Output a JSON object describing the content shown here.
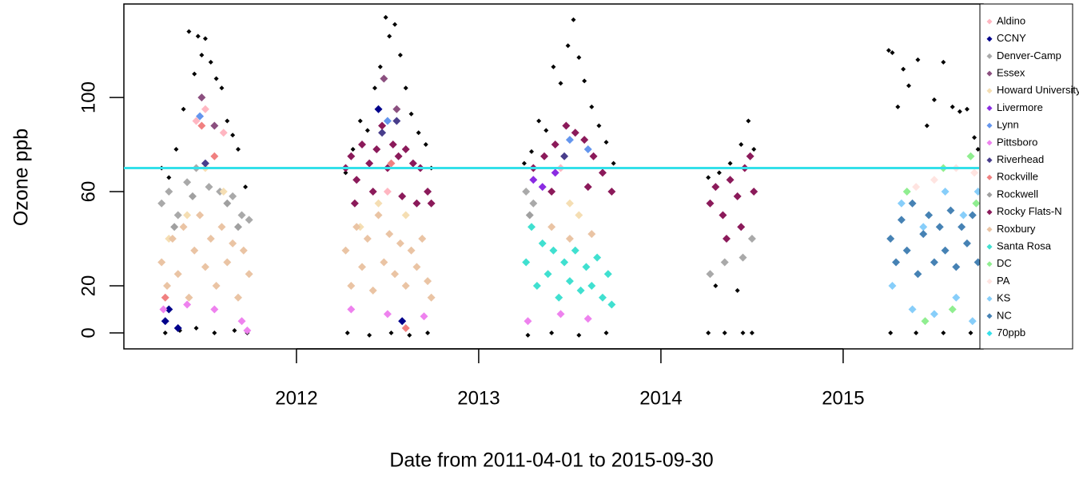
{
  "chart_data": {
    "type": "scatter",
    "x_label": "Date from 2011-04-01 to 2015-09-30",
    "y_label": "Ozone ppb",
    "xlim": [
      2011.053,
      2015.746
    ],
    "xticks": [
      2012,
      2013,
      2014,
      2015
    ],
    "ylim": [
      -6.8,
      139.7
    ],
    "yticks": [
      0,
      20,
      60,
      100
    ],
    "series": [
      {
        "color": "#000000",
        "x": [
          2011.26,
          2011.3,
          2011.34,
          2011.38,
          2011.41,
          2011.44,
          2011.46,
          2011.48,
          2011.5,
          2011.53,
          2011.56,
          2011.59,
          2011.62,
          2011.65,
          2011.68,
          2011.72,
          2011.28,
          2011.36,
          2011.45,
          2011.55,
          2011.66,
          2011.73,
          2012.27,
          2012.31,
          2012.35,
          2012.39,
          2012.43,
          2012.46,
          2012.49,
          2012.51,
          2012.54,
          2012.57,
          2012.6,
          2012.63,
          2012.67,
          2012.71,
          2012.74,
          2012.28,
          2012.4,
          2012.52,
          2012.62,
          2012.72,
          2013.25,
          2013.29,
          2013.33,
          2013.37,
          2013.41,
          2013.45,
          2013.49,
          2013.52,
          2013.55,
          2013.58,
          2013.62,
          2013.66,
          2013.7,
          2013.74,
          2013.27,
          2013.4,
          2013.55,
          2013.7,
          2014.26,
          2014.32,
          2014.38,
          2014.44,
          2014.48,
          2014.51,
          2014.26,
          2014.35,
          2014.45,
          2014.5,
          2014.3,
          2014.42,
          2015.25,
          2015.27,
          2015.3,
          2015.33,
          2015.36,
          2015.41,
          2015.46,
          2015.5,
          2015.55,
          2015.6,
          2015.64,
          2015.68,
          2015.72,
          2015.74,
          2015.26,
          2015.4,
          2015.55,
          2015.7
        ],
        "values": [
          70,
          66,
          78,
          95,
          128,
          110,
          126,
          118,
          125,
          115,
          108,
          104,
          90,
          84,
          78,
          62,
          0,
          1,
          2,
          0,
          1,
          0,
          68,
          78,
          90,
          86,
          104,
          113,
          134,
          126,
          131,
          118,
          104,
          93,
          85,
          80,
          70,
          0,
          -1,
          0,
          -1,
          0,
          72,
          77,
          90,
          86,
          113,
          106,
          122,
          133,
          117,
          107,
          96,
          88,
          81,
          72,
          -1,
          0,
          -1,
          0,
          66,
          68,
          72,
          80,
          90,
          78,
          0,
          0,
          0,
          0,
          20,
          18,
          120,
          119,
          96,
          112,
          105,
          116,
          88,
          99,
          115,
          96,
          94,
          95,
          83,
          78,
          0,
          0,
          0,
          0
        ]
      },
      {
        "name": "Aldino",
        "color": "#ffb6c1",
        "x": [
          2011.45,
          2011.5,
          2012.5,
          2011.6,
          2013.45
        ],
        "values": [
          90,
          95,
          60,
          85,
          70
        ]
      },
      {
        "name": "CCNY",
        "color": "#00008b",
        "x": [
          2011.28,
          2011.3,
          2012.45,
          2011.35,
          2012.58
        ],
        "values": [
          5,
          10,
          95,
          2,
          5
        ]
      },
      {
        "name": "Denver-Camp",
        "color": "#a9a9a9",
        "x": [
          2011.26,
          2011.3,
          2011.35,
          2011.4,
          2011.45,
          2011.52,
          2011.58,
          2011.65,
          2011.7,
          2011.74,
          2014.27,
          2014.35,
          2014.45,
          2014.5,
          2013.26,
          2013.3
        ],
        "values": [
          55,
          60,
          50,
          64,
          70,
          62,
          60,
          58,
          50,
          48,
          25,
          30,
          32,
          40,
          60,
          55
        ]
      },
      {
        "name": "Essex",
        "color": "#8b4f7f",
        "x": [
          2011.48,
          2012.48,
          2012.55,
          2011.55
        ],
        "values": [
          100,
          108,
          95,
          88
        ]
      },
      {
        "name": "Howard University",
        "color": "#f5deb3",
        "x": [
          2011.3,
          2011.4,
          2011.5,
          2011.6,
          2012.35,
          2012.45,
          2012.6,
          2013.5,
          2013.55
        ],
        "values": [
          40,
          50,
          70,
          60,
          45,
          55,
          50,
          55,
          50
        ]
      },
      {
        "name": "Livermore",
        "color": "#8a2be2",
        "x": [
          2013.3,
          2013.35,
          2013.42
        ],
        "values": [
          65,
          62,
          68
        ]
      },
      {
        "name": "Lynn",
        "color": "#6495ed",
        "x": [
          2011.47,
          2012.5,
          2013.6,
          2013.5
        ],
        "values": [
          92,
          90,
          78,
          82
        ]
      },
      {
        "name": "Pittsboro",
        "color": "#ee82ee",
        "x": [
          2011.27,
          2011.4,
          2011.55,
          2011.7,
          2012.3,
          2012.5,
          2012.7,
          2013.27,
          2013.45,
          2013.6,
          2011.73
        ],
        "values": [
          10,
          12,
          10,
          5,
          10,
          8,
          7,
          5,
          8,
          6,
          1
        ]
      },
      {
        "name": "Riverhead",
        "color": "#483d8b",
        "x": [
          2012.47,
          2012.55,
          2013.47,
          2011.5
        ],
        "values": [
          85,
          90,
          75,
          72
        ]
      },
      {
        "name": "Rockville",
        "color": "#f08080",
        "x": [
          2011.55,
          2011.48,
          2012.52,
          2011.28,
          2012.6
        ],
        "values": [
          75,
          88,
          72,
          15,
          2
        ]
      },
      {
        "name": "Rockwell",
        "color": "#a0a0a0",
        "x": [
          2011.33,
          2011.43,
          2011.62,
          2011.68,
          2013.28
        ],
        "values": [
          45,
          58,
          55,
          45,
          50
        ]
      },
      {
        "name": "Rocky Flats-N",
        "color": "#8b1a5a",
        "x": [
          2012.27,
          2012.3,
          2012.33,
          2012.36,
          2012.4,
          2012.44,
          2012.47,
          2012.5,
          2012.53,
          2012.56,
          2012.6,
          2012.64,
          2012.68,
          2012.72,
          2012.74,
          2012.32,
          2012.42,
          2012.58,
          2012.66,
          2013.3,
          2013.36,
          2013.42,
          2013.48,
          2013.53,
          2013.58,
          2013.63,
          2013.68,
          2013.73,
          2013.4,
          2013.6,
          2014.27,
          2014.3,
          2014.34,
          2014.38,
          2014.42,
          2014.46,
          2014.49,
          2014.51,
          2014.36,
          2014.44
        ],
        "values": [
          70,
          75,
          65,
          80,
          72,
          78,
          88,
          70,
          80,
          75,
          78,
          72,
          70,
          60,
          55,
          55,
          60,
          58,
          55,
          70,
          75,
          80,
          88,
          85,
          82,
          75,
          68,
          60,
          60,
          62,
          55,
          62,
          50,
          65,
          58,
          70,
          75,
          60,
          40,
          45
        ]
      },
      {
        "name": "Roxbury",
        "color": "#eac4a4",
        "x": [
          2011.26,
          2011.29,
          2011.32,
          2011.35,
          2011.38,
          2011.41,
          2011.44,
          2011.47,
          2011.5,
          2011.53,
          2011.56,
          2011.59,
          2011.62,
          2011.65,
          2011.68,
          2011.71,
          2011.74,
          2012.27,
          2012.3,
          2012.33,
          2012.36,
          2012.39,
          2012.42,
          2012.45,
          2012.48,
          2012.51,
          2012.54,
          2012.57,
          2012.6,
          2012.63,
          2012.66,
          2012.69,
          2012.72,
          2012.74,
          2013.4,
          2013.5,
          2013.62
        ],
        "values": [
          30,
          20,
          40,
          25,
          45,
          15,
          35,
          50,
          28,
          40,
          20,
          45,
          30,
          38,
          15,
          35,
          25,
          35,
          20,
          45,
          28,
          40,
          18,
          50,
          30,
          42,
          25,
          38,
          20,
          35,
          28,
          40,
          22,
          15,
          45,
          40,
          42
        ]
      },
      {
        "name": "Santa Rosa",
        "color": "#40e0d0",
        "x": [
          2013.26,
          2013.29,
          2013.32,
          2013.35,
          2013.38,
          2013.41,
          2013.44,
          2013.47,
          2013.5,
          2013.53,
          2013.56,
          2013.59,
          2013.62,
          2013.65,
          2013.68,
          2013.71,
          2013.73
        ],
        "values": [
          30,
          45,
          20,
          38,
          25,
          35,
          15,
          30,
          22,
          35,
          18,
          28,
          20,
          32,
          15,
          25,
          12
        ]
      },
      {
        "name": "DC",
        "color": "#90ee90",
        "x": [
          2015.35,
          2015.45,
          2015.55,
          2015.7,
          2015.73,
          2015.6
        ],
        "values": [
          60,
          5,
          70,
          75,
          55,
          10
        ]
      },
      {
        "name": "PA",
        "color": "#ffe4e1",
        "x": [
          2015.4,
          2015.5,
          2015.62,
          2015.72
        ],
        "values": [
          62,
          65,
          70,
          68
        ]
      },
      {
        "name": "KS",
        "color": "#87cefa",
        "x": [
          2015.27,
          2015.32,
          2015.38,
          2015.44,
          2015.5,
          2015.56,
          2015.62,
          2015.66,
          2015.71,
          2015.74
        ],
        "values": [
          20,
          55,
          10,
          45,
          8,
          60,
          15,
          50,
          5,
          60
        ]
      },
      {
        "name": "NC",
        "color": "#4682b4",
        "x": [
          2015.26,
          2015.29,
          2015.32,
          2015.35,
          2015.38,
          2015.41,
          2015.44,
          2015.47,
          2015.5,
          2015.53,
          2015.56,
          2015.59,
          2015.62,
          2015.65,
          2015.68,
          2015.71,
          2015.74
        ],
        "values": [
          40,
          30,
          48,
          35,
          55,
          25,
          42,
          50,
          30,
          45,
          35,
          52,
          28,
          45,
          38,
          50,
          30
        ]
      }
    ],
    "reference_line": {
      "name": "70ppb",
      "value": 70,
      "color": "#33e0ea"
    }
  }
}
